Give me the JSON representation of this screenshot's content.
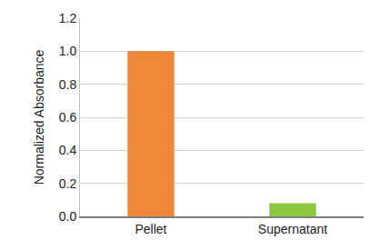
{
  "chart_data": {
    "type": "bar",
    "y_label": "Normalized Absorbance",
    "categories": [
      "Pellet",
      "Supernatant"
    ],
    "values": [
      1.0,
      0.08
    ],
    "colors": [
      "#f0883a",
      "#8dc63f"
    ],
    "ylim": [
      0,
      1.2
    ],
    "yticks": [
      {
        "value": 0,
        "label": "0.0"
      },
      0.2,
      0.4,
      0.6,
      0.8,
      {
        "value": 1,
        "label": "1.0"
      },
      0.2,
      {
        "value": 1.2,
        "label": "1.2"
      }
    ],
    "grid": true
  }
}
